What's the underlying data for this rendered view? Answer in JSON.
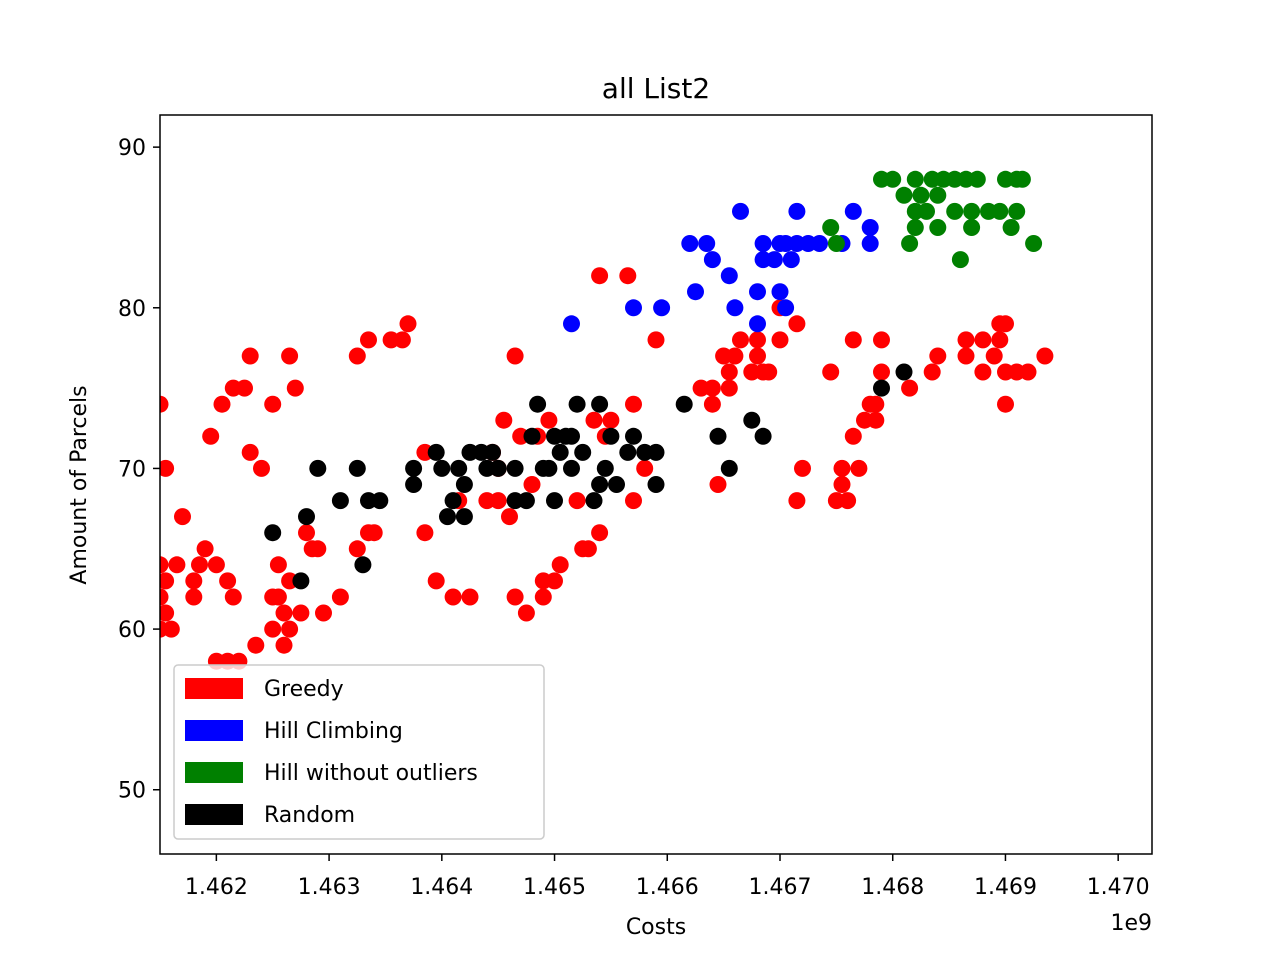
{
  "chart_data": {
    "type": "scatter",
    "title": "all List2",
    "xlabel": "Costs",
    "ylabel": "Amount of Parcels",
    "x_offset_label": "1e9",
    "x_unit_scale": 1000000000,
    "xlim": [
      1461500000,
      1470300000
    ],
    "ylim": [
      46,
      92
    ],
    "xticks": [
      1462000000,
      1463000000,
      1464000000,
      1465000000,
      1466000000,
      1467000000,
      1468000000,
      1469000000,
      1470000000
    ],
    "xtick_labels": [
      "1.462",
      "1.463",
      "1.464",
      "1.465",
      "1.466",
      "1.467",
      "1.468",
      "1.469",
      "1.470"
    ],
    "yticks": [
      50,
      60,
      70,
      80,
      90
    ],
    "ytick_labels": [
      "50",
      "60",
      "70",
      "80",
      "90"
    ],
    "grid": false,
    "legend_position": "lower-left",
    "series": [
      {
        "name": "Greedy",
        "color": "#ff0000",
        "points": [
          [
            1461500000,
            74
          ],
          [
            1461550000,
            70
          ],
          [
            1461500000,
            64
          ],
          [
            1461550000,
            63
          ],
          [
            1461500000,
            62
          ],
          [
            1461550000,
            61
          ],
          [
            1461600000,
            60
          ],
          [
            1461500000,
            60
          ],
          [
            1461650000,
            64
          ],
          [
            1461700000,
            67
          ],
          [
            1461800000,
            63
          ],
          [
            1461800000,
            62
          ],
          [
            1461850000,
            64
          ],
          [
            1461900000,
            65
          ],
          [
            1461950000,
            72
          ],
          [
            1462000000,
            64
          ],
          [
            1462050000,
            74
          ],
          [
            1462000000,
            58
          ],
          [
            1462100000,
            58
          ],
          [
            1462100000,
            63
          ],
          [
            1462150000,
            62
          ],
          [
            1462200000,
            58
          ],
          [
            1462150000,
            75
          ],
          [
            1462250000,
            75
          ],
          [
            1462300000,
            77
          ],
          [
            1462300000,
            71
          ],
          [
            1462350000,
            59
          ],
          [
            1462400000,
            70
          ],
          [
            1462500000,
            74
          ],
          [
            1462500000,
            62
          ],
          [
            1462500000,
            60
          ],
          [
            1462550000,
            64
          ],
          [
            1462550000,
            62
          ],
          [
            1462600000,
            61
          ],
          [
            1462600000,
            59
          ],
          [
            1462650000,
            60
          ],
          [
            1462650000,
            63
          ],
          [
            1462650000,
            77
          ],
          [
            1462700000,
            75
          ],
          [
            1462750000,
            61
          ],
          [
            1462800000,
            66
          ],
          [
            1462850000,
            65
          ],
          [
            1462900000,
            65
          ],
          [
            1462950000,
            61
          ],
          [
            1463100000,
            62
          ],
          [
            1463250000,
            77
          ],
          [
            1463250000,
            65
          ],
          [
            1463350000,
            66
          ],
          [
            1463350000,
            78
          ],
          [
            1463400000,
            66
          ],
          [
            1463550000,
            78
          ],
          [
            1463650000,
            78
          ],
          [
            1463700000,
            79
          ],
          [
            1463850000,
            66
          ],
          [
            1463850000,
            71
          ],
          [
            1463950000,
            63
          ],
          [
            1464100000,
            62
          ],
          [
            1464150000,
            68
          ],
          [
            1464250000,
            62
          ],
          [
            1464400000,
            68
          ],
          [
            1464450000,
            71
          ],
          [
            1464500000,
            70
          ],
          [
            1464500000,
            68
          ],
          [
            1464550000,
            73
          ],
          [
            1464600000,
            67
          ],
          [
            1464650000,
            77
          ],
          [
            1464650000,
            62
          ],
          [
            1464700000,
            72
          ],
          [
            1464750000,
            61
          ],
          [
            1464800000,
            69
          ],
          [
            1464850000,
            72
          ],
          [
            1464900000,
            62
          ],
          [
            1464900000,
            63
          ],
          [
            1464950000,
            73
          ],
          [
            1465000000,
            63
          ],
          [
            1465050000,
            64
          ],
          [
            1465200000,
            68
          ],
          [
            1465250000,
            65
          ],
          [
            1465300000,
            65
          ],
          [
            1465350000,
            73
          ],
          [
            1465400000,
            66
          ],
          [
            1465400000,
            82
          ],
          [
            1465450000,
            72
          ],
          [
            1465500000,
            73
          ],
          [
            1465650000,
            82
          ],
          [
            1465700000,
            74
          ],
          [
            1465700000,
            68
          ],
          [
            1465800000,
            70
          ],
          [
            1465900000,
            78
          ],
          [
            1466300000,
            75
          ],
          [
            1466400000,
            74
          ],
          [
            1466400000,
            75
          ],
          [
            1466450000,
            69
          ],
          [
            1466500000,
            77
          ],
          [
            1466550000,
            76
          ],
          [
            1466550000,
            75
          ],
          [
            1466600000,
            77
          ],
          [
            1466650000,
            78
          ],
          [
            1466750000,
            76
          ],
          [
            1466800000,
            78
          ],
          [
            1466800000,
            77
          ],
          [
            1466850000,
            76
          ],
          [
            1466900000,
            76
          ],
          [
            1467000000,
            80
          ],
          [
            1467000000,
            78
          ],
          [
            1467150000,
            79
          ],
          [
            1467150000,
            68
          ],
          [
            1467200000,
            70
          ],
          [
            1467450000,
            76
          ],
          [
            1467500000,
            68
          ],
          [
            1467550000,
            70
          ],
          [
            1467550000,
            69
          ],
          [
            1467600000,
            68
          ],
          [
            1467650000,
            78
          ],
          [
            1467650000,
            72
          ],
          [
            1467700000,
            70
          ],
          [
            1467750000,
            73
          ],
          [
            1467800000,
            74
          ],
          [
            1467850000,
            74
          ],
          [
            1467850000,
            73
          ],
          [
            1467900000,
            78
          ],
          [
            1467900000,
            76
          ],
          [
            1468150000,
            75
          ],
          [
            1468350000,
            76
          ],
          [
            1468400000,
            77
          ],
          [
            1468650000,
            77
          ],
          [
            1468650000,
            78
          ],
          [
            1468800000,
            78
          ],
          [
            1468800000,
            76
          ],
          [
            1468900000,
            77
          ],
          [
            1468950000,
            78
          ],
          [
            1468950000,
            79
          ],
          [
            1469000000,
            79
          ],
          [
            1469000000,
            74
          ],
          [
            1469000000,
            76
          ],
          [
            1469100000,
            76
          ],
          [
            1469200000,
            76
          ],
          [
            1469350000,
            77
          ]
        ]
      },
      {
        "name": "Hill Climbing",
        "color": "#0000ff",
        "points": [
          [
            1465150000,
            79
          ],
          [
            1465700000,
            80
          ],
          [
            1465950000,
            80
          ],
          [
            1466200000,
            84
          ],
          [
            1466250000,
            81
          ],
          [
            1466350000,
            84
          ],
          [
            1466400000,
            83
          ],
          [
            1466550000,
            82
          ],
          [
            1466600000,
            80
          ],
          [
            1466650000,
            86
          ],
          [
            1466800000,
            79
          ],
          [
            1466800000,
            81
          ],
          [
            1466850000,
            84
          ],
          [
            1466850000,
            83
          ],
          [
            1466950000,
            83
          ],
          [
            1467000000,
            81
          ],
          [
            1467000000,
            84
          ],
          [
            1467050000,
            84
          ],
          [
            1467050000,
            80
          ],
          [
            1467100000,
            83
          ],
          [
            1467150000,
            84
          ],
          [
            1467150000,
            86
          ],
          [
            1467250000,
            84
          ],
          [
            1467350000,
            84
          ],
          [
            1467550000,
            84
          ],
          [
            1467650000,
            86
          ],
          [
            1467800000,
            85
          ],
          [
            1467800000,
            84
          ]
        ]
      },
      {
        "name": "Hill without outliers",
        "color": "#008000",
        "points": [
          [
            1467450000,
            85
          ],
          [
            1467500000,
            84
          ],
          [
            1467900000,
            88
          ],
          [
            1468000000,
            88
          ],
          [
            1468100000,
            87
          ],
          [
            1468200000,
            88
          ],
          [
            1468200000,
            86
          ],
          [
            1468200000,
            85
          ],
          [
            1468150000,
            84
          ],
          [
            1468250000,
            87
          ],
          [
            1468300000,
            86
          ],
          [
            1468350000,
            88
          ],
          [
            1468400000,
            87
          ],
          [
            1468400000,
            85
          ],
          [
            1468450000,
            88
          ],
          [
            1468550000,
            88
          ],
          [
            1468550000,
            86
          ],
          [
            1468600000,
            83
          ],
          [
            1468650000,
            88
          ],
          [
            1468700000,
            86
          ],
          [
            1468700000,
            85
          ],
          [
            1468750000,
            88
          ],
          [
            1468850000,
            86
          ],
          [
            1468950000,
            86
          ],
          [
            1469000000,
            88
          ],
          [
            1469050000,
            85
          ],
          [
            1469100000,
            88
          ],
          [
            1469100000,
            86
          ],
          [
            1469150000,
            88
          ],
          [
            1469250000,
            84
          ]
        ]
      },
      {
        "name": "Random",
        "color": "#000000",
        "points": [
          [
            1462500000,
            66
          ],
          [
            1462750000,
            63
          ],
          [
            1462800000,
            67
          ],
          [
            1462900000,
            70
          ],
          [
            1463100000,
            68
          ],
          [
            1463250000,
            70
          ],
          [
            1463300000,
            64
          ],
          [
            1463350000,
            68
          ],
          [
            1463450000,
            68
          ],
          [
            1463750000,
            70
          ],
          [
            1463750000,
            69
          ],
          [
            1463950000,
            71
          ],
          [
            1464000000,
            70
          ],
          [
            1464050000,
            67
          ],
          [
            1464100000,
            68
          ],
          [
            1464150000,
            70
          ],
          [
            1464200000,
            69
          ],
          [
            1464200000,
            67
          ],
          [
            1464250000,
            71
          ],
          [
            1464350000,
            71
          ],
          [
            1464400000,
            70
          ],
          [
            1464450000,
            71
          ],
          [
            1464500000,
            70
          ],
          [
            1464650000,
            70
          ],
          [
            1464650000,
            68
          ],
          [
            1464750000,
            68
          ],
          [
            1464800000,
            72
          ],
          [
            1464850000,
            74
          ],
          [
            1464900000,
            70
          ],
          [
            1464950000,
            70
          ],
          [
            1465000000,
            72
          ],
          [
            1465000000,
            68
          ],
          [
            1465050000,
            71
          ],
          [
            1465100000,
            72
          ],
          [
            1465150000,
            72
          ],
          [
            1465150000,
            70
          ],
          [
            1465200000,
            74
          ],
          [
            1465250000,
            71
          ],
          [
            1465350000,
            68
          ],
          [
            1465400000,
            69
          ],
          [
            1465400000,
            74
          ],
          [
            1465450000,
            70
          ],
          [
            1465500000,
            72
          ],
          [
            1465550000,
            69
          ],
          [
            1465650000,
            71
          ],
          [
            1465700000,
            72
          ],
          [
            1465800000,
            71
          ],
          [
            1465900000,
            71
          ],
          [
            1465900000,
            69
          ],
          [
            1466150000,
            74
          ],
          [
            1466450000,
            72
          ],
          [
            1466550000,
            70
          ],
          [
            1466750000,
            73
          ],
          [
            1466850000,
            72
          ],
          [
            1467900000,
            75
          ],
          [
            1468100000,
            76
          ]
        ]
      }
    ]
  }
}
